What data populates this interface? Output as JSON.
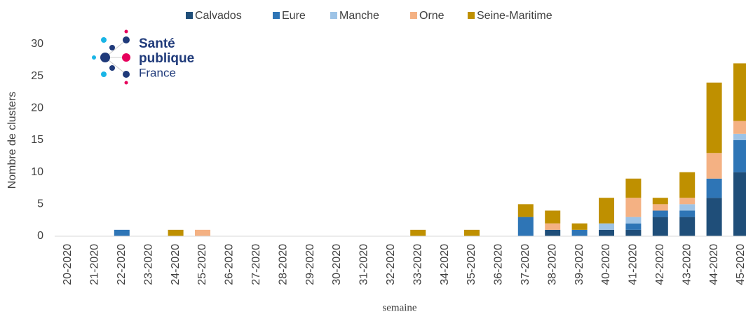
{
  "chart_data": {
    "type": "bar",
    "stacked": true,
    "logo": {
      "line1": "Santé",
      "line2": "publique",
      "line3": "France"
    },
    "y_label": "Nombre de clusters",
    "x_label": "semaine",
    "categories": [
      "20-2020",
      "21-2020",
      "22-2020",
      "23-2020",
      "24-2020",
      "25-2020",
      "26-2020",
      "27-2020",
      "28-2020",
      "29-2020",
      "30-2020",
      "31-2020",
      "32-2020",
      "33-2020",
      "34-2020",
      "35-2020",
      "36-2020",
      "37-2020",
      "38-2020",
      "39-2020",
      "40-2020",
      "41-2020",
      "42-2020",
      "43-2020",
      "44-2020",
      "45-2020"
    ],
    "series": [
      {
        "name": "Calvados",
        "color": "#1f4e79",
        "values": [
          0,
          0,
          0,
          0,
          0,
          0,
          0,
          0,
          0,
          0,
          0,
          0,
          0,
          0,
          0,
          0,
          0,
          0,
          1,
          0,
          1,
          1,
          3,
          3,
          6,
          10
        ]
      },
      {
        "name": "Eure",
        "color": "#2e75b6",
        "values": [
          0,
          0,
          1,
          0,
          0,
          0,
          0,
          0,
          0,
          0,
          0,
          0,
          0,
          0,
          0,
          0,
          0,
          3,
          0,
          1,
          0,
          1,
          1,
          1,
          3,
          5
        ]
      },
      {
        "name": "Manche",
        "color": "#9dc3e6",
        "values": [
          0,
          0,
          0,
          0,
          0,
          0,
          0,
          0,
          0,
          0,
          0,
          0,
          0,
          0,
          0,
          0,
          0,
          0,
          0,
          0,
          1,
          1,
          0,
          1,
          0,
          1
        ]
      },
      {
        "name": "Orne",
        "color": "#f4b183",
        "values": [
          0,
          0,
          0,
          0,
          0,
          1,
          0,
          0,
          0,
          0,
          0,
          0,
          0,
          0,
          0,
          0,
          0,
          0,
          1,
          0,
          0,
          3,
          1,
          1,
          4,
          2
        ]
      },
      {
        "name": "Seine-Maritime",
        "color": "#bf9000",
        "values": [
          0,
          0,
          0,
          0,
          1,
          0,
          0,
          0,
          0,
          0,
          0,
          0,
          0,
          1,
          0,
          1,
          0,
          2,
          2,
          1,
          4,
          3,
          1,
          4,
          11,
          9
        ]
      }
    ],
    "ylim": [
      0,
      30
    ],
    "yticks": [
      0,
      5,
      10,
      15,
      20,
      25,
      30
    ],
    "grid": false
  }
}
